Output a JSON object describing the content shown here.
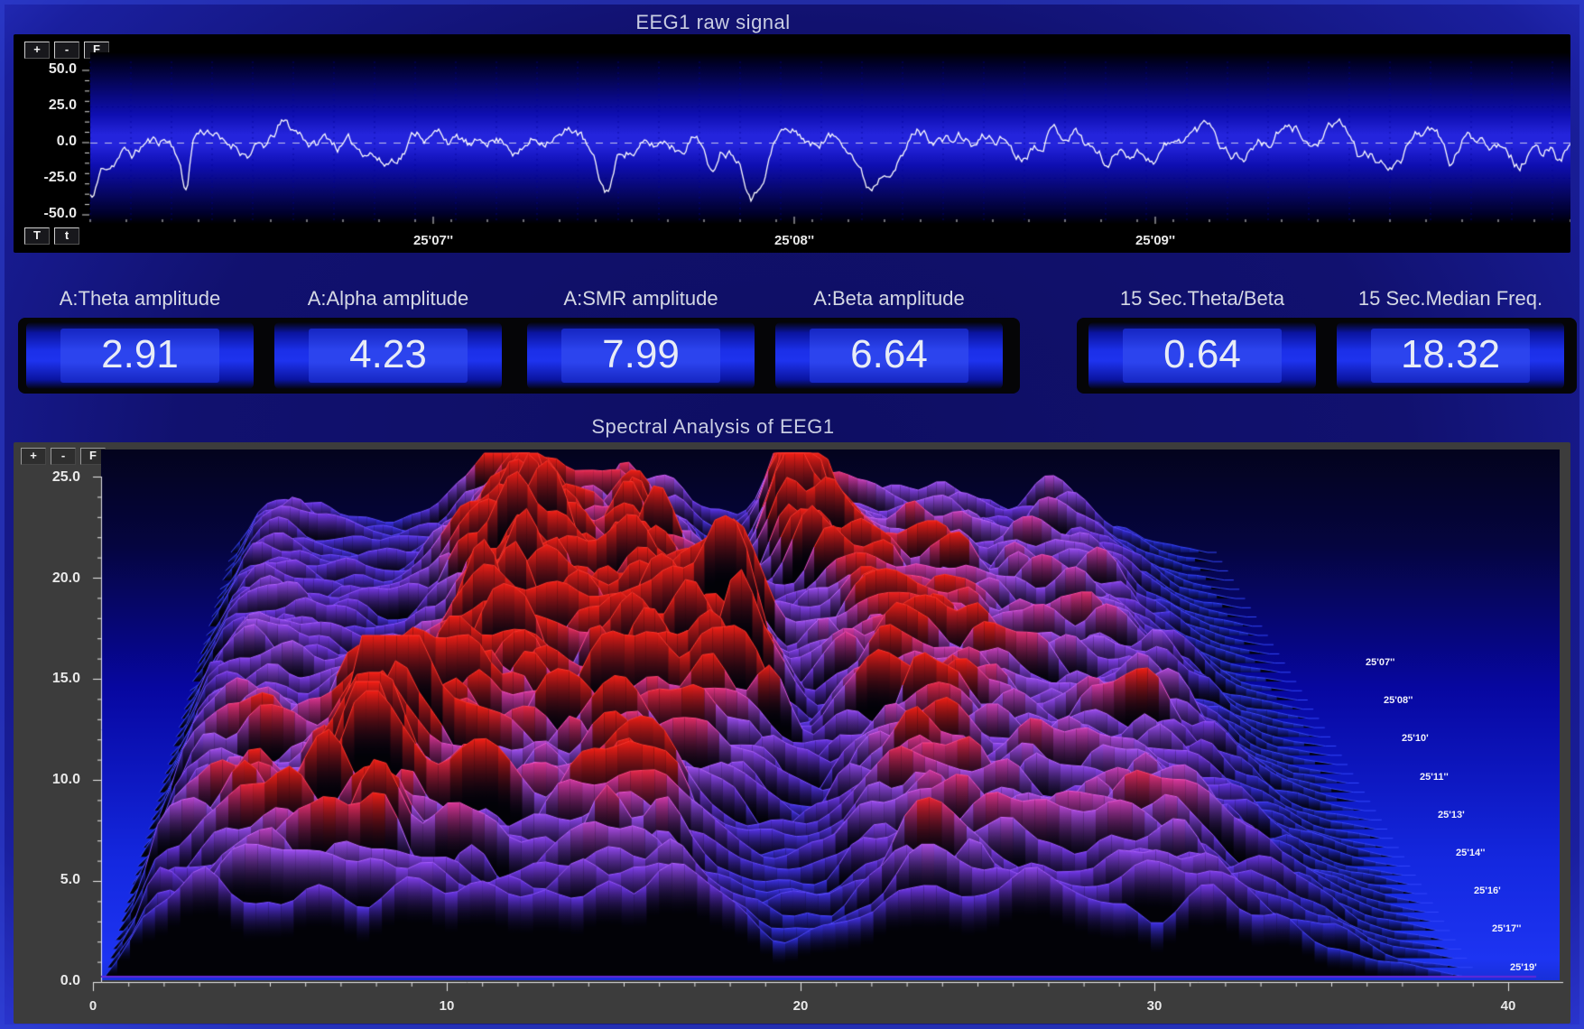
{
  "raw_panel": {
    "title": "EEG1 raw signal",
    "zoom_buttons": [
      "+",
      "-",
      "F"
    ],
    "time_buttons": [
      "T",
      "t"
    ],
    "chart_data": {
      "type": "line",
      "label": "EEG1",
      "y_range": [
        -50,
        50
      ],
      "y_tick_labels": [
        "50.0",
        "25.0",
        "0.0",
        "-25.0",
        "-50.0"
      ],
      "x_tick_labels": [
        "25'07''",
        "25'08''",
        "25'09''"
      ],
      "line_color": "#ffffff",
      "baseline": {
        "value": 0,
        "style": "dashed"
      },
      "typical_amplitude_uV": 15,
      "extreme_excursion_uV": -45
    }
  },
  "metrics": [
    {
      "label": "A:Theta amplitude",
      "value": "2.91"
    },
    {
      "label": "A:Alpha amplitude",
      "value": "4.23"
    },
    {
      "label": "A:SMR amplitude",
      "value": "7.99"
    },
    {
      "label": "A:Beta amplitude",
      "value": "6.64"
    },
    {
      "label": "15 Sec.Theta/Beta",
      "value": "0.64"
    },
    {
      "label": "15 Sec.Median Freq.",
      "value": "18.32"
    }
  ],
  "spectral_panel": {
    "title": "Spectral Analysis of EEG1",
    "zoom_buttons": [
      "+",
      "-",
      "F"
    ],
    "chart_data": {
      "type": "3d_waterfall_spectrum",
      "x_range_hz": [
        0,
        40
      ],
      "x_tick_labels": [
        "0",
        "10",
        "20",
        "30",
        "40"
      ],
      "y_range": [
        0,
        25
      ],
      "y_tick_labels": [
        "25.0",
        "20.0",
        "15.0",
        "10.0",
        "5.0",
        "0.0"
      ],
      "time_labels": [
        "25'07''",
        "25'08''",
        "25'10'",
        "25'11''",
        "25'13'",
        "25'14''",
        "25'16'",
        "25'17''",
        "25'19'"
      ],
      "colors": {
        "low": "#1c30e4",
        "mid": "#7d3cfa",
        "high": "#ff2016",
        "background_top": "#03031d",
        "background_bottom": "#1d34f2"
      },
      "peaks": [
        {
          "freq_hz": 2.2,
          "amp": 2.6,
          "sigma_hz": 1.4,
          "time_center": 0.55,
          "time_width": 0.8
        },
        {
          "freq_hz": 5.0,
          "amp": 3.2,
          "sigma_hz": 1.6,
          "time_center": 0.75,
          "time_width": 0.4
        },
        {
          "freq_hz": 7.6,
          "amp": 6.8,
          "sigma_hz": 1.1,
          "time_center": 0.72,
          "time_width": 0.16
        },
        {
          "freq_hz": 10.3,
          "amp": 4.3,
          "sigma_hz": 1.6,
          "time_center": 0.45,
          "time_width": 0.45
        },
        {
          "freq_hz": 12.2,
          "amp": 5.0,
          "sigma_hz": 1.3,
          "time_center": 0.18,
          "time_width": 0.3
        },
        {
          "freq_hz": 14.8,
          "amp": 4.0,
          "sigma_hz": 1.5,
          "time_center": 0.55,
          "time_width": 0.5
        },
        {
          "freq_hz": 17.0,
          "amp": 4.3,
          "sigma_hz": 1.3,
          "time_center": 0.3,
          "time_width": 0.4
        },
        {
          "freq_hz": 19.5,
          "amp": 6.8,
          "sigma_hz": 1.1,
          "time_center": 0.45,
          "time_width": 0.14
        },
        {
          "freq_hz": 22.6,
          "amp": 8.0,
          "sigma_hz": 1.0,
          "time_center": 0.08,
          "time_width": 0.11
        },
        {
          "freq_hz": 24.0,
          "amp": 3.6,
          "sigma_hz": 1.6,
          "time_center": 0.6,
          "time_width": 0.5
        },
        {
          "freq_hz": 27.0,
          "amp": 3.9,
          "sigma_hz": 1.9,
          "time_center": 0.35,
          "time_width": 0.5
        },
        {
          "freq_hz": 31.0,
          "amp": 3.4,
          "sigma_hz": 1.9,
          "time_center": 0.6,
          "time_width": 0.6
        },
        {
          "freq_hz": 34.0,
          "amp": 2.7,
          "sigma_hz": 1.6,
          "time_center": 0.3,
          "time_width": 0.5
        }
      ]
    }
  }
}
